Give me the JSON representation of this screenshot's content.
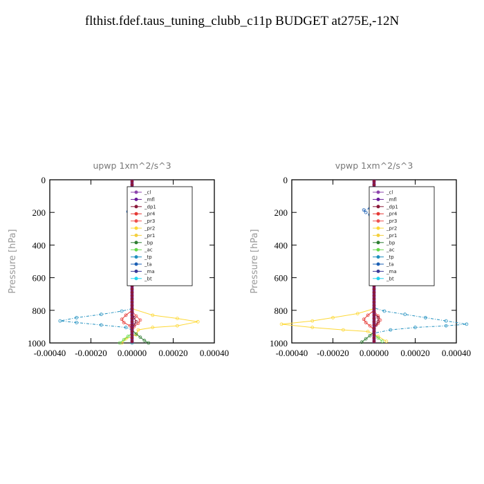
{
  "title": "flthist.fdef.taus_tuning_clubb_c11p  BUDGET at275E,-12N",
  "colors": {
    "cl": "#8e44ad",
    "mfl": "#6a1b9a",
    "dp1": "#8b1a3a",
    "pr4": "#e53935",
    "pr3": "#ef5350",
    "pr2": "#fdd835",
    "pr1": "#f4d03f",
    "bp": "#2e7d32",
    "ac": "#66d94a",
    "tp": "#1f8fbf",
    "ta": "#1a5fb4",
    "ma": "#3b3b98",
    "bt": "#22d3ee"
  },
  "chart_data": [
    {
      "type": "line",
      "title": "upwp   1xm^2/s^3",
      "xlabel": "",
      "ylabel": "Pressure [hPa]",
      "xlim": [
        -0.0004,
        0.0004
      ],
      "ylim": [
        1000,
        0
      ],
      "y_inverted": true,
      "xticks": [
        "-0.00040",
        "-0.00020",
        "0.00000",
        "0.00020",
        "0.00040"
      ],
      "yticks": [
        "0",
        "200",
        "400",
        "600",
        "800",
        "1000"
      ],
      "legend_position": "top-right",
      "legend": [
        "_cl",
        "_mfl",
        "_dp1",
        "_pr4",
        "_pr3",
        "_pr2",
        "_pr1",
        "_bp",
        "_ac",
        "_tp",
        "_ta",
        "_ma",
        "_bt"
      ],
      "series": [
        {
          "name": "_pr2",
          "color_key": "pr2",
          "points": [
            [
              1e-05,
              180
            ],
            [
              2e-05,
              195
            ],
            [
              1e-05,
              210
            ],
            [
              0.0,
              790
            ],
            [
              0.0001,
              830
            ],
            [
              0.00022,
              850
            ],
            [
              0.00032,
              870
            ],
            [
              0.00022,
              895
            ],
            [
              0.0001,
              905
            ],
            [
              3e-05,
              920
            ],
            [
              2e-05,
              950
            ],
            [
              -3e-05,
              975
            ],
            [
              -5e-05,
              1000
            ]
          ]
        },
        {
          "name": "_tp",
          "color_key": "tp",
          "points": [
            [
              0.0,
              790
            ],
            [
              -5e-05,
              805
            ],
            [
              -0.00015,
              825
            ],
            [
              -0.00027,
              845
            ],
            [
              -0.00035,
              865
            ],
            [
              -0.00027,
              875
            ],
            [
              -0.00015,
              890
            ],
            [
              -3e-05,
              905
            ],
            [
              0.0,
              920
            ],
            [
              0.0,
              1000
            ]
          ]
        },
        {
          "name": "_pr4",
          "color_key": "pr4",
          "points": [
            [
              0.0,
              800
            ],
            [
              -3e-05,
              830
            ],
            [
              -5e-05,
              855
            ],
            [
              -4e-05,
              875
            ],
            [
              -1e-05,
              895
            ],
            [
              0.0,
              920
            ]
          ]
        },
        {
          "name": "_pr3",
          "color_key": "pr3",
          "points": [
            [
              0.0,
              805
            ],
            [
              2e-05,
              835
            ],
            [
              4e-05,
              860
            ],
            [
              3e-05,
              880
            ],
            [
              1e-05,
              900
            ],
            [
              0.0,
              925
            ]
          ]
        },
        {
          "name": "_dp1",
          "color_key": "dp1",
          "points": [
            [
              0.0,
              815
            ],
            [
              1e-05,
              845
            ],
            [
              2e-05,
              870
            ],
            [
              1e-05,
              890
            ],
            [
              0.0,
              910
            ]
          ]
        },
        {
          "name": "_bp",
          "color_key": "bp",
          "points": [
            [
              0.0,
              920
            ],
            [
              2e-05,
              945
            ],
            [
              4e-05,
              965
            ],
            [
              6e-05,
              985
            ],
            [
              8e-05,
              1000
            ]
          ]
        },
        {
          "name": "_ac",
          "color_key": "ac",
          "points": [
            [
              0.0,
              940
            ],
            [
              -2e-05,
              960
            ],
            [
              -4e-05,
              980
            ],
            [
              -6e-05,
              1000
            ]
          ]
        },
        {
          "name": "_ta",
          "color_key": "ta",
          "points": [
            [
              -1e-05,
              185
            ],
            [
              -2e-05,
              195
            ],
            [
              -1e-05,
              205
            ],
            [
              0.0,
              230
            ]
          ]
        },
        {
          "name": "_mfl",
          "color_key": "mfl",
          "points": [
            [
              0.0,
              0
            ],
            [
              0.0,
              1000
            ]
          ]
        }
      ]
    },
    {
      "type": "line",
      "title": "vpwp   1xm^2/s^3",
      "xlabel": "",
      "ylabel": "Pressure [hPa]",
      "xlim": [
        -0.0004,
        0.0004
      ],
      "ylim": [
        1000,
        0
      ],
      "y_inverted": true,
      "xticks": [
        "-0.00040",
        "-0.00020",
        "0.00000",
        "0.00020",
        "0.00040"
      ],
      "yticks": [
        "0",
        "200",
        "400",
        "600",
        "800",
        "1000"
      ],
      "legend_position": "top-right",
      "legend": [
        "_cl",
        "_mfl",
        "_dp1",
        "_pr4",
        "_pr3",
        "_pr2",
        "_pr1",
        "_bp",
        "_ac",
        "_tp",
        "_ta",
        "_ma",
        "_bt"
      ],
      "series": [
        {
          "name": "_pr2",
          "color_key": "pr2",
          "points": [
            [
              3e-05,
              180
            ],
            [
              5e-05,
              195
            ],
            [
              4e-05,
              210
            ],
            [
              2e-05,
              250
            ],
            [
              1e-05,
              290
            ],
            [
              0.0,
              790
            ],
            [
              -8e-05,
              820
            ],
            [
              -0.0002,
              845
            ],
            [
              -0.0003,
              865
            ],
            [
              -0.00045,
              885
            ],
            [
              -0.0003,
              905
            ],
            [
              -0.00015,
              920
            ],
            [
              -3e-05,
              930
            ],
            [
              2e-05,
              960
            ],
            [
              6e-05,
              990
            ]
          ]
        },
        {
          "name": "_tp",
          "color_key": "tp",
          "points": [
            [
              2e-05,
              190
            ],
            [
              3e-05,
              230
            ],
            [
              2e-05,
              280
            ],
            [
              0.0,
              785
            ],
            [
              5e-05,
              805
            ],
            [
              0.00015,
              825
            ],
            [
              0.00025,
              845
            ],
            [
              0.00035,
              865
            ],
            [
              0.00045,
              885
            ],
            [
              0.00035,
              895
            ],
            [
              0.0002,
              905
            ],
            [
              8e-05,
              920
            ],
            [
              0.0,
              940
            ]
          ]
        },
        {
          "name": "_ta",
          "color_key": "ta",
          "points": [
            [
              -2e-05,
              175
            ],
            [
              -5e-05,
              185
            ],
            [
              -4e-05,
              200
            ],
            [
              -2e-05,
              215
            ]
          ]
        },
        {
          "name": "_pr4",
          "color_key": "pr4",
          "points": [
            [
              0.0,
              800
            ],
            [
              -3e-05,
              830
            ],
            [
              -5e-05,
              855
            ],
            [
              -4e-05,
              875
            ],
            [
              -2e-05,
              895
            ],
            [
              0.0,
              920
            ]
          ]
        },
        {
          "name": "_pr3",
          "color_key": "pr3",
          "points": [
            [
              0.0,
              805
            ],
            [
              2e-05,
              835
            ],
            [
              3e-05,
              860
            ],
            [
              2e-05,
              880
            ],
            [
              0.0,
              910
            ]
          ]
        },
        {
          "name": "_dp1",
          "color_key": "dp1",
          "points": [
            [
              0.0,
              815
            ],
            [
              2e-05,
              845
            ],
            [
              2e-05,
              870
            ],
            [
              1e-05,
              890
            ],
            [
              0.0,
              910
            ]
          ]
        },
        {
          "name": "_bp",
          "color_key": "bp",
          "points": [
            [
              0.0,
              930
            ],
            [
              -2e-05,
              955
            ],
            [
              -4e-05,
              975
            ],
            [
              -6e-05,
              995
            ]
          ]
        },
        {
          "name": "_ac",
          "color_key": "ac",
          "points": [
            [
              0.0,
              950
            ],
            [
              2e-05,
              970
            ],
            [
              4e-05,
              990
            ]
          ]
        },
        {
          "name": "_mfl",
          "color_key": "mfl",
          "points": [
            [
              0.0,
              0
            ],
            [
              0.0,
              1000
            ]
          ]
        }
      ]
    }
  ]
}
